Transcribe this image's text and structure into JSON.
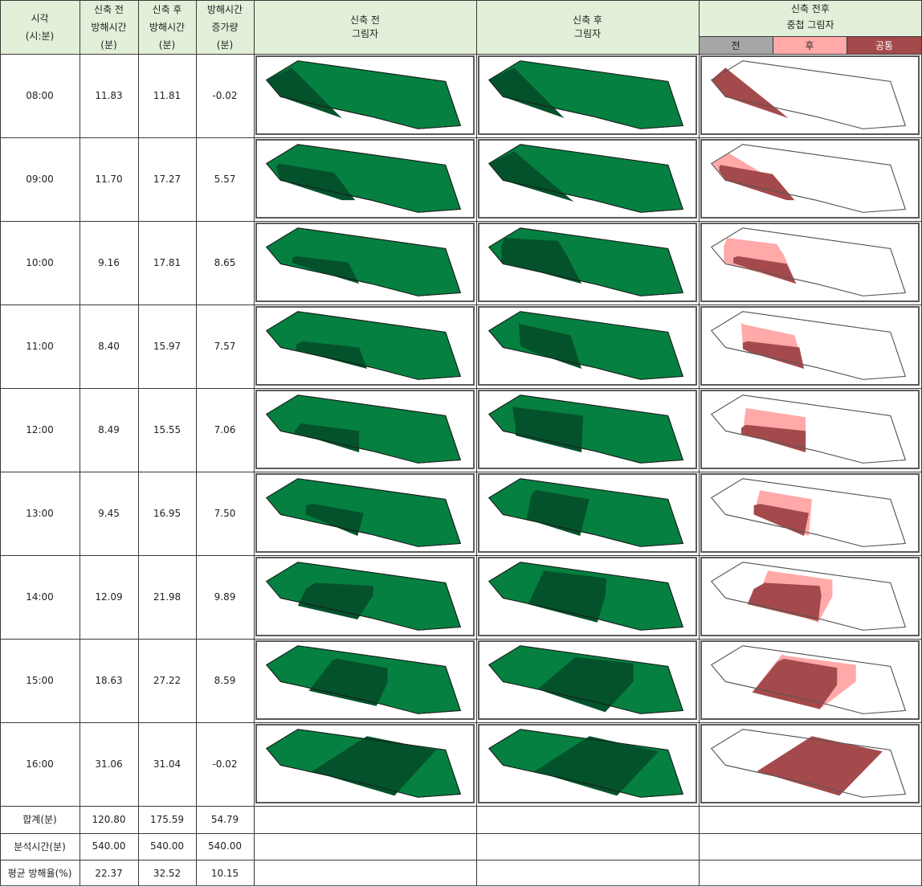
{
  "header": {
    "time": [
      "시각",
      "(시:분)"
    ],
    "before_time": [
      "신축 전",
      "방해시간",
      "(분)"
    ],
    "after_time": [
      "신축 후",
      "방해시간",
      "(분)"
    ],
    "increase": [
      "방해시간",
      "증가량",
      "(분)"
    ],
    "before_shadow": [
      "신축 전",
      "그림자"
    ],
    "after_shadow": [
      "신축 후",
      "그림자"
    ],
    "overlap_shadow": [
      "신축 전후",
      "중첩 그림자"
    ],
    "legend": {
      "before": "전",
      "after": "후",
      "common": "공통"
    }
  },
  "colors": {
    "header_bg": "#e2efd9",
    "site_green": "#058040",
    "shadow_dark_green": "#04522b",
    "legend_before": "#a6a6a6",
    "legend_after": "#ffa9a9",
    "legend_common": "#a44a4c"
  },
  "rows": [
    {
      "time": "08:00",
      "before": "11.83",
      "after": "11.81",
      "increase": "-0.02"
    },
    {
      "time": "09:00",
      "before": "11.70",
      "after": "17.27",
      "increase": "5.57"
    },
    {
      "time": "10:00",
      "before": "9.16",
      "after": "17.81",
      "increase": "8.65"
    },
    {
      "time": "11:00",
      "before": "8.40",
      "after": "15.97",
      "increase": "7.57"
    },
    {
      "time": "12:00",
      "before": "8.49",
      "after": "15.55",
      "increase": "7.06"
    },
    {
      "time": "13:00",
      "before": "9.45",
      "after": "16.95",
      "increase": "7.50"
    },
    {
      "time": "14:00",
      "before": "12.09",
      "after": "21.98",
      "increase": "9.89"
    },
    {
      "time": "15:00",
      "before": "18.63",
      "after": "27.22",
      "increase": "8.59"
    },
    {
      "time": "16:00",
      "before": "31.06",
      "after": "31.04",
      "increase": "-0.02"
    }
  ],
  "summary": [
    {
      "label": "합계(분)",
      "before": "120.80",
      "after": "175.59",
      "increase": "54.79"
    },
    {
      "label": "분석시간(분)",
      "before": "540.00",
      "after": "540.00",
      "increase": "540.00"
    },
    {
      "label": "평균 방해율(%)",
      "before": "22.37",
      "after": "32.52",
      "increase": "10.15"
    }
  ]
}
